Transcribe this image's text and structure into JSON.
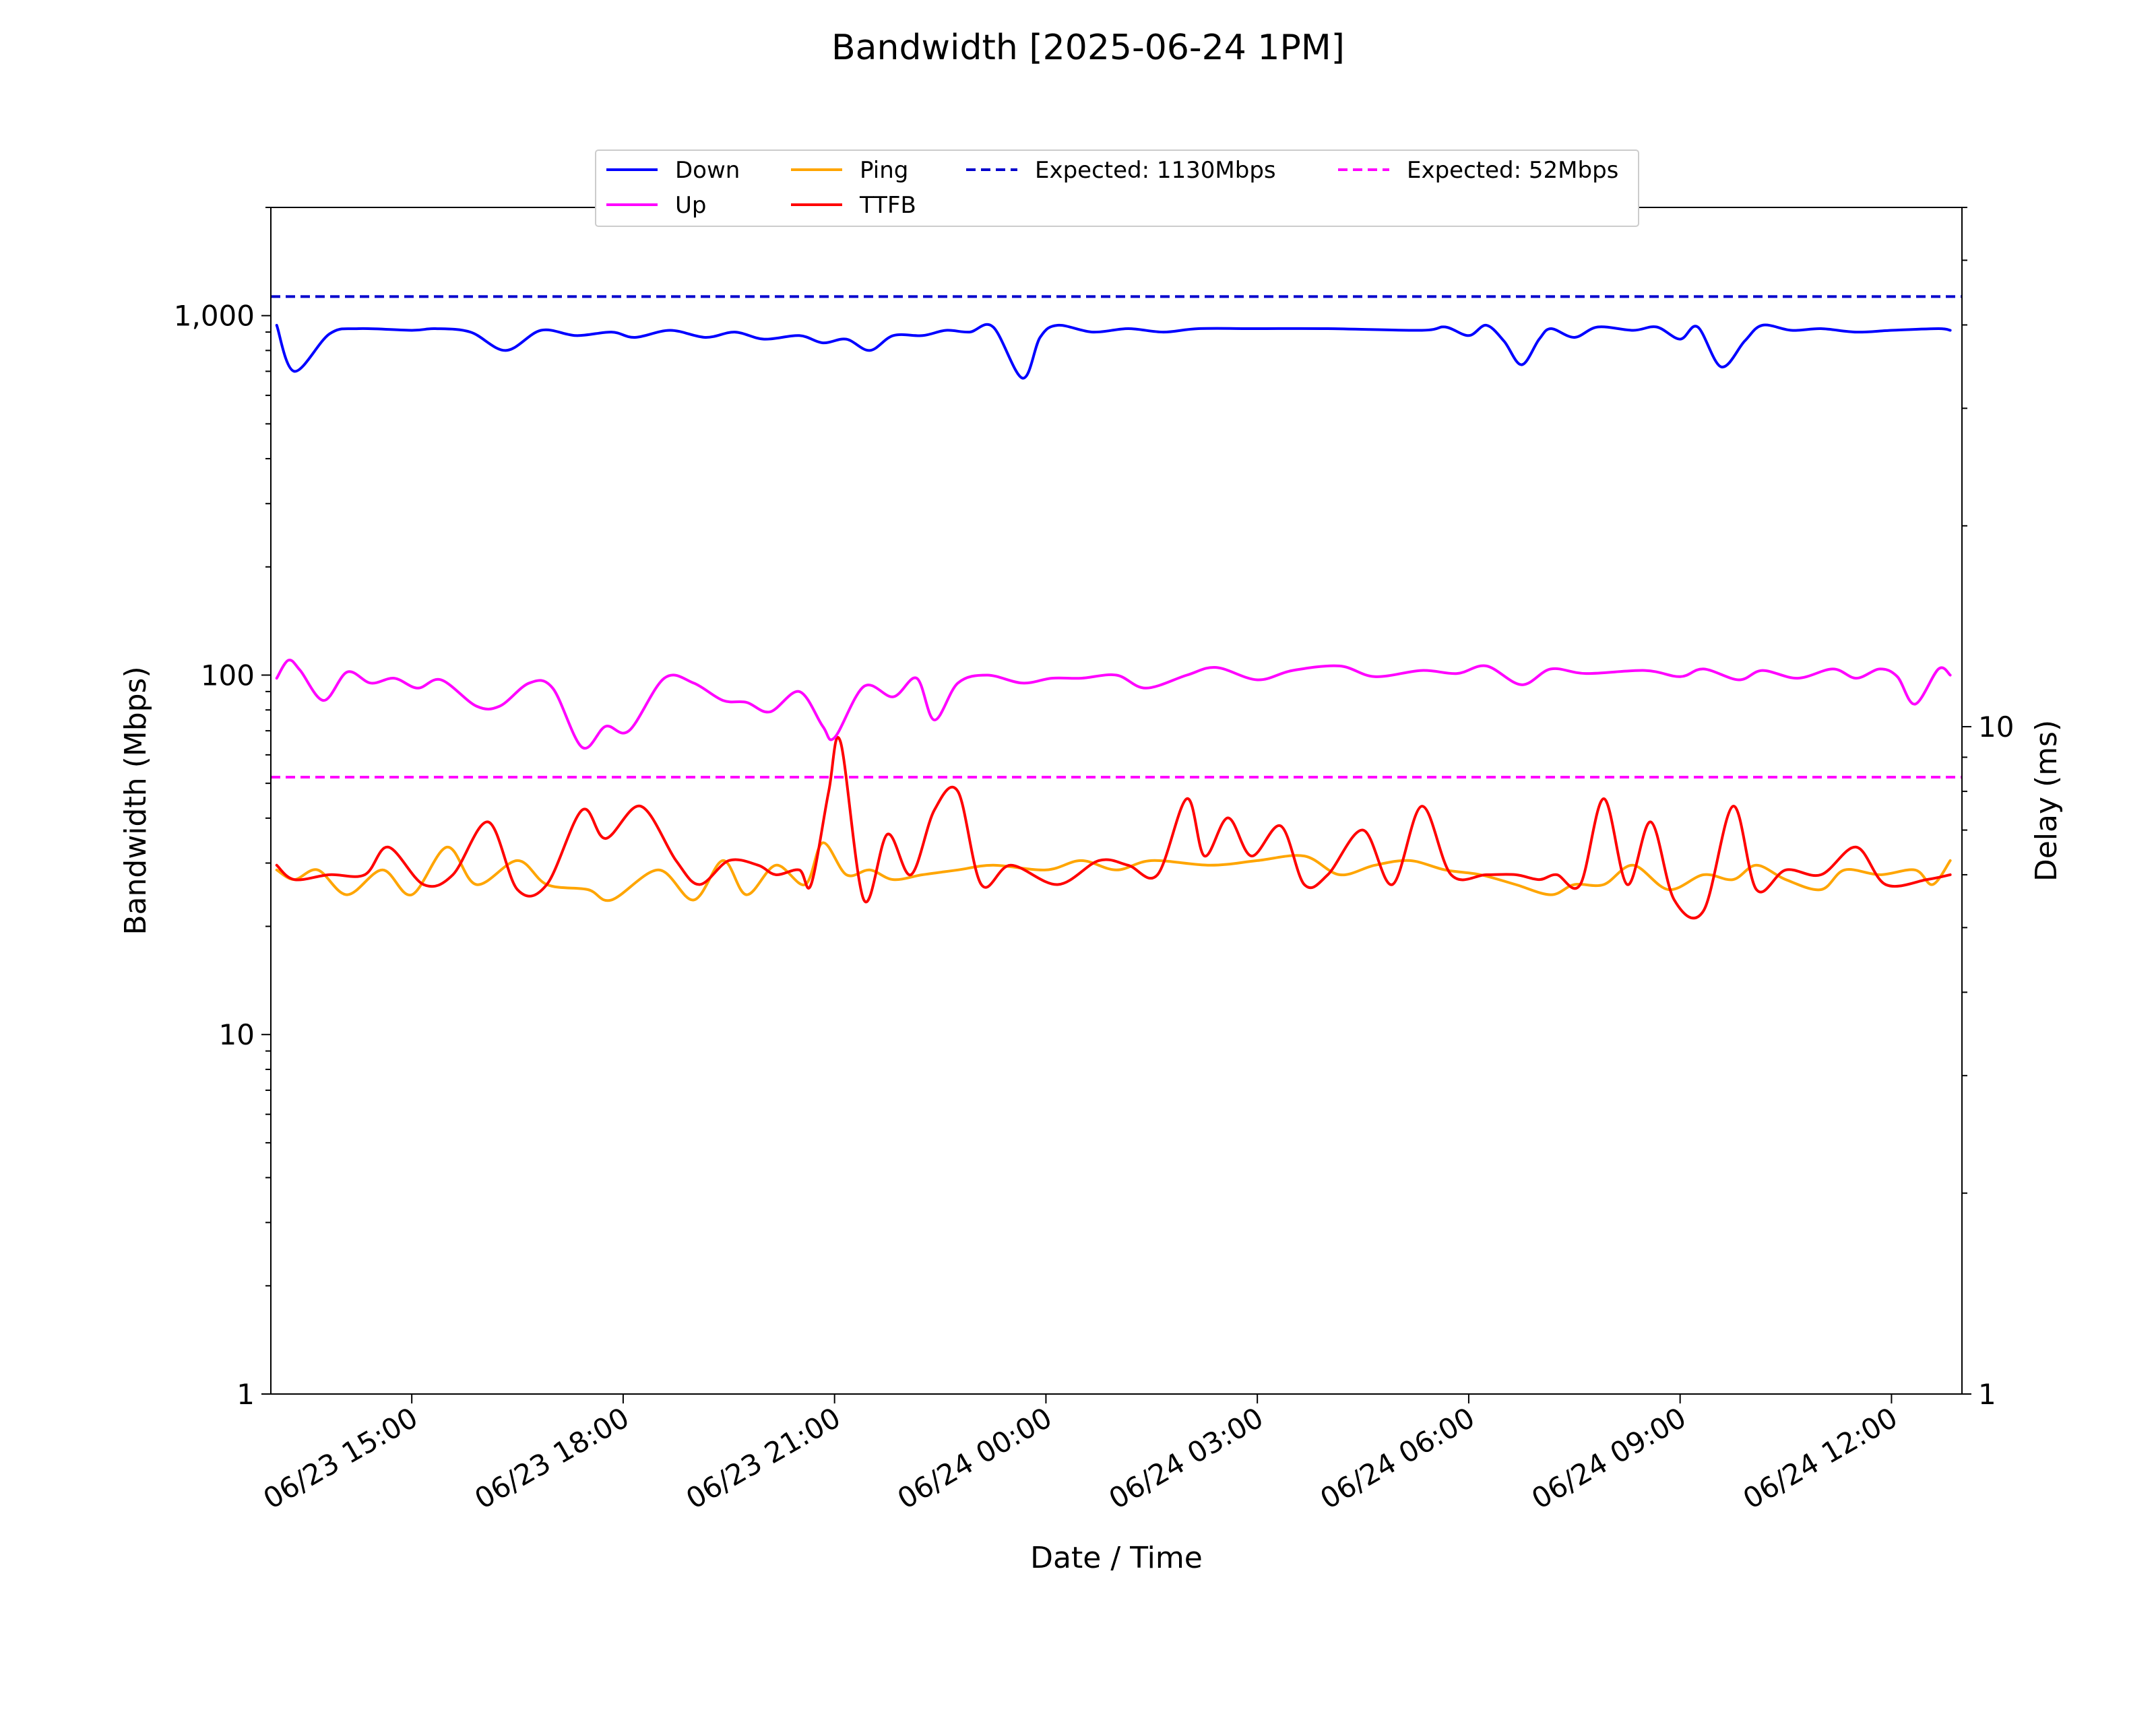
{
  "chart_data": {
    "type": "line",
    "title": "Bandwidth [2025-06-24 1PM]",
    "xlabel": "Date / Time",
    "ylabel_left": "Bandwidth (Mbps)",
    "ylabel_right": "Delay (ms)",
    "y_scale": "log",
    "ylim_left": [
      1,
      2000
    ],
    "ylim_right": [
      1,
      60
    ],
    "y_ticks_left": [
      {
        "value": 1,
        "label": "1"
      },
      {
        "value": 10,
        "label": "10"
      },
      {
        "value": 100,
        "label": "100"
      },
      {
        "value": 1000,
        "label": "1,000"
      }
    ],
    "y_ticks_right": [
      {
        "value": 1,
        "label": "1"
      },
      {
        "value": 10,
        "label": "10"
      }
    ],
    "x_ticks": [
      "06/23 15:00",
      "06/23 18:00",
      "06/23 21:00",
      "06/24 00:00",
      "06/24 03:00",
      "06/24 06:00",
      "06/24 09:00",
      "06/24 12:00"
    ],
    "legend_position": "top-center",
    "legend": [
      {
        "label": "Down",
        "color": "#0000ff",
        "dash": false
      },
      {
        "label": "Up",
        "color": "#ff00ff",
        "dash": false
      },
      {
        "label": "Ping",
        "color": "#ffa500",
        "dash": false
      },
      {
        "label": "TTFB",
        "color": "#ff0000",
        "dash": false
      },
      {
        "label": "Expected: 1130Mbps",
        "color": "#0000cc",
        "dash": true
      },
      {
        "label": "Expected: 52Mbps",
        "color": "#ff00ff",
        "dash": true
      }
    ],
    "reference_lines": [
      {
        "label": "Expected: 1130Mbps",
        "value": 1130,
        "axis": "left",
        "color": "#0000cc"
      },
      {
        "label": "Expected: 52Mbps",
        "value": 52,
        "axis": "left",
        "color": "#ff00ff"
      }
    ],
    "series": [
      {
        "name": "Down",
        "axis": "left",
        "color": "#0000ff",
        "points": [
          [
            "06/23 13:05",
            940
          ],
          [
            "06/23 13:20",
            700
          ],
          [
            "06/23 13:50",
            890
          ],
          [
            "06/23 14:15",
            920
          ],
          [
            "06/23 15:00",
            910
          ],
          [
            "06/23 15:20",
            920
          ],
          [
            "06/23 15:50",
            900
          ],
          [
            "06/23 16:20",
            800
          ],
          [
            "06/23 16:50",
            910
          ],
          [
            "06/23 17:20",
            880
          ],
          [
            "06/23 17:50",
            900
          ],
          [
            "06/23 18:10",
            870
          ],
          [
            "06/23 18:40",
            910
          ],
          [
            "06/23 19:10",
            870
          ],
          [
            "06/23 19:35",
            900
          ],
          [
            "06/23 20:00",
            860
          ],
          [
            "06/23 20:30",
            880
          ],
          [
            "06/23 20:50",
            840
          ],
          [
            "06/23 21:10",
            860
          ],
          [
            "06/23 21:30",
            800
          ],
          [
            "06/23 21:50",
            880
          ],
          [
            "06/23 22:15",
            880
          ],
          [
            "06/23 22:35",
            910
          ],
          [
            "06/23 22:55",
            900
          ],
          [
            "06/23 23:15",
            930
          ],
          [
            "06/23 23:40",
            670
          ],
          [
            "06/23 23:55",
            870
          ],
          [
            "06/24 00:10",
            940
          ],
          [
            "06/24 00:40",
            900
          ],
          [
            "06/24 01:10",
            920
          ],
          [
            "06/24 01:40",
            900
          ],
          [
            "06/24 02:10",
            920
          ],
          [
            "06/24 03:00",
            920
          ],
          [
            "06/24 04:00",
            920
          ],
          [
            "06/24 05:20",
            910
          ],
          [
            "06/24 05:40",
            930
          ],
          [
            "06/24 06:00",
            880
          ],
          [
            "06/24 06:15",
            940
          ],
          [
            "06/24 06:30",
            850
          ],
          [
            "06/24 06:45",
            730
          ],
          [
            "06/24 07:00",
            860
          ],
          [
            "06/24 07:10",
            920
          ],
          [
            "06/24 07:30",
            870
          ],
          [
            "06/24 07:50",
            930
          ],
          [
            "06/24 08:20",
            910
          ],
          [
            "06/24 08:40",
            930
          ],
          [
            "06/24 09:00",
            860
          ],
          [
            "06/24 09:15",
            930
          ],
          [
            "06/24 09:35",
            720
          ],
          [
            "06/24 09:55",
            850
          ],
          [
            "06/24 10:10",
            940
          ],
          [
            "06/24 10:35",
            910
          ],
          [
            "06/24 11:00",
            920
          ],
          [
            "06/24 11:30",
            900
          ],
          [
            "06/24 12:00",
            910
          ],
          [
            "06/24 12:40",
            920
          ],
          [
            "06/24 12:50",
            910
          ]
        ]
      },
      {
        "name": "Up",
        "axis": "left",
        "color": "#ff00ff",
        "points": [
          [
            "06/23 13:05",
            98
          ],
          [
            "06/23 13:15",
            110
          ],
          [
            "06/23 13:25",
            103
          ],
          [
            "06/23 13:45",
            85
          ],
          [
            "06/23 14:05",
            102
          ],
          [
            "06/23 14:25",
            95
          ],
          [
            "06/23 14:45",
            98
          ],
          [
            "06/23 15:05",
            92
          ],
          [
            "06/23 15:25",
            97
          ],
          [
            "06/23 15:55",
            82
          ],
          [
            "06/23 16:15",
            82
          ],
          [
            "06/23 16:40",
            95
          ],
          [
            "06/23 17:00",
            92
          ],
          [
            "06/23 17:25",
            63
          ],
          [
            "06/23 17:45",
            72
          ],
          [
            "06/23 18:05",
            70
          ],
          [
            "06/23 18:35",
            98
          ],
          [
            "06/23 19:00",
            95
          ],
          [
            "06/23 19:25",
            85
          ],
          [
            "06/23 19:45",
            84
          ],
          [
            "06/23 20:05",
            79
          ],
          [
            "06/23 20:30",
            90
          ],
          [
            "06/23 20:50",
            72
          ],
          [
            "06/23 21:00",
            67
          ],
          [
            "06/23 21:25",
            93
          ],
          [
            "06/23 21:50",
            87
          ],
          [
            "06/23 22:10",
            98
          ],
          [
            "06/23 22:25",
            75
          ],
          [
            "06/23 22:45",
            95
          ],
          [
            "06/23 23:10",
            100
          ],
          [
            "06/23 23:40",
            95
          ],
          [
            "06/24 00:05",
            98
          ],
          [
            "06/24 00:30",
            98
          ],
          [
            "06/24 01:00",
            100
          ],
          [
            "06/24 01:25",
            92
          ],
          [
            "06/24 02:00",
            100
          ],
          [
            "06/24 02:25",
            105
          ],
          [
            "06/24 03:00",
            97
          ],
          [
            "06/24 03:30",
            103
          ],
          [
            "06/24 04:10",
            106
          ],
          [
            "06/24 04:40",
            99
          ],
          [
            "06/24 05:20",
            103
          ],
          [
            "06/24 05:50",
            101
          ],
          [
            "06/24 06:15",
            106
          ],
          [
            "06/24 06:45",
            94
          ],
          [
            "06/24 07:10",
            104
          ],
          [
            "06/24 07:40",
            101
          ],
          [
            "06/24 08:30",
            103
          ],
          [
            "06/24 09:00",
            99
          ],
          [
            "06/24 09:20",
            104
          ],
          [
            "06/24 09:50",
            97
          ],
          [
            "06/24 10:10",
            103
          ],
          [
            "06/24 10:40",
            98
          ],
          [
            "06/24 11:10",
            104
          ],
          [
            "06/24 11:30",
            98
          ],
          [
            "06/24 11:50",
            104
          ],
          [
            "06/24 12:05",
            99
          ],
          [
            "06/24 12:20",
            83
          ],
          [
            "06/24 12:40",
            104
          ],
          [
            "06/24 12:50",
            100
          ]
        ]
      },
      {
        "name": "Ping",
        "axis": "right",
        "color": "#ffa500",
        "points": [
          [
            "06/23 13:05",
            6.1
          ],
          [
            "06/23 13:20",
            5.9
          ],
          [
            "06/23 13:40",
            6.1
          ],
          [
            "06/23 14:05",
            5.6
          ],
          [
            "06/23 14:35",
            6.1
          ],
          [
            "06/23 15:00",
            5.6
          ],
          [
            "06/23 15:30",
            6.6
          ],
          [
            "06/23 15:55",
            5.8
          ],
          [
            "06/23 16:30",
            6.3
          ],
          [
            "06/23 16:55",
            5.8
          ],
          [
            "06/23 17:30",
            5.7
          ],
          [
            "06/23 17:50",
            5.5
          ],
          [
            "06/23 18:30",
            6.1
          ],
          [
            "06/23 19:00",
            5.5
          ],
          [
            "06/23 19:25",
            6.3
          ],
          [
            "06/23 19:45",
            5.6
          ],
          [
            "06/23 20:10",
            6.2
          ],
          [
            "06/23 20:35",
            5.8
          ],
          [
            "06/23 20:50",
            6.7
          ],
          [
            "06/23 21:10",
            6.0
          ],
          [
            "06/23 21:30",
            6.1
          ],
          [
            "06/23 21:50",
            5.9
          ],
          [
            "06/23 22:15",
            6.0
          ],
          [
            "06/23 22:45",
            6.1
          ],
          [
            "06/23 23:15",
            6.2
          ],
          [
            "06/24 00:00",
            6.1
          ],
          [
            "06/24 00:30",
            6.3
          ],
          [
            "06/24 01:00",
            6.1
          ],
          [
            "06/24 01:30",
            6.3
          ],
          [
            "06/24 02:20",
            6.2
          ],
          [
            "06/24 03:00",
            6.3
          ],
          [
            "06/24 03:40",
            6.4
          ],
          [
            "06/24 04:10",
            6.0
          ],
          [
            "06/24 04:40",
            6.2
          ],
          [
            "06/24 05:10",
            6.3
          ],
          [
            "06/24 05:40",
            6.1
          ],
          [
            "06/24 06:10",
            6.0
          ],
          [
            "06/24 06:40",
            5.8
          ],
          [
            "06/24 07:10",
            5.6
          ],
          [
            "06/24 07:30",
            5.8
          ],
          [
            "06/24 07:55",
            5.8
          ],
          [
            "06/24 08:20",
            6.2
          ],
          [
            "06/24 08:50",
            5.7
          ],
          [
            "06/24 09:20",
            6.0
          ],
          [
            "06/24 09:45",
            5.9
          ],
          [
            "06/24 10:05",
            6.2
          ],
          [
            "06/24 10:30",
            5.9
          ],
          [
            "06/24 11:00",
            5.7
          ],
          [
            "06/24 11:20",
            6.1
          ],
          [
            "06/24 11:50",
            6.0
          ],
          [
            "06/24 12:20",
            6.1
          ],
          [
            "06/24 12:35",
            5.8
          ],
          [
            "06/24 12:50",
            6.3
          ]
        ]
      },
      {
        "name": "TTFB",
        "axis": "right",
        "color": "#ff0000",
        "points": [
          [
            "06/23 13:05",
            6.2
          ],
          [
            "06/23 13:20",
            5.9
          ],
          [
            "06/23 13:50",
            6.0
          ],
          [
            "06/23 14:20",
            6.0
          ],
          [
            "06/23 14:40",
            6.6
          ],
          [
            "06/23 15:10",
            5.8
          ],
          [
            "06/23 15:35",
            6.0
          ],
          [
            "06/23 16:05",
            7.2
          ],
          [
            "06/23 16:30",
            5.7
          ],
          [
            "06/23 16:55",
            5.8
          ],
          [
            "06/23 17:25",
            7.5
          ],
          [
            "06/23 17:45",
            6.8
          ],
          [
            "06/23 18:15",
            7.6
          ],
          [
            "06/23 18:45",
            6.3
          ],
          [
            "06/23 19:05",
            5.8
          ],
          [
            "06/23 19:30",
            6.3
          ],
          [
            "06/23 19:55",
            6.2
          ],
          [
            "06/23 20:10",
            6.0
          ],
          [
            "06/23 20:30",
            6.1
          ],
          [
            "06/23 20:40",
            5.8
          ],
          [
            "06/23 20:55",
            8.0
          ],
          [
            "06/23 21:05",
            9.5
          ],
          [
            "06/23 21:25",
            5.5
          ],
          [
            "06/23 21:45",
            6.9
          ],
          [
            "06/23 22:05",
            6.0
          ],
          [
            "06/23 22:25",
            7.5
          ],
          [
            "06/23 22:45",
            8.0
          ],
          [
            "06/23 23:05",
            5.8
          ],
          [
            "06/23 23:30",
            6.2
          ],
          [
            "06/24 00:10",
            5.8
          ],
          [
            "06/24 00:45",
            6.3
          ],
          [
            "06/24 01:10",
            6.2
          ],
          [
            "06/24 01:35",
            6.0
          ],
          [
            "06/24 02:00",
            7.8
          ],
          [
            "06/24 02:15",
            6.4
          ],
          [
            "06/24 02:35",
            7.3
          ],
          [
            "06/24 02:55",
            6.4
          ],
          [
            "06/24 03:20",
            7.1
          ],
          [
            "06/24 03:40",
            5.8
          ],
          [
            "06/24 04:00",
            6.0
          ],
          [
            "06/24 04:30",
            7.0
          ],
          [
            "06/24 04:55",
            5.8
          ],
          [
            "06/24 05:20",
            7.6
          ],
          [
            "06/24 05:45",
            6.0
          ],
          [
            "06/24 06:15",
            6.0
          ],
          [
            "06/24 06:40",
            6.0
          ],
          [
            "06/24 07:00",
            5.9
          ],
          [
            "06/24 07:15",
            6.0
          ],
          [
            "06/24 07:35",
            5.8
          ],
          [
            "06/24 07:55",
            7.8
          ],
          [
            "06/24 08:15",
            5.8
          ],
          [
            "06/24 08:35",
            7.2
          ],
          [
            "06/24 08:55",
            5.5
          ],
          [
            "06/24 09:20",
            5.3
          ],
          [
            "06/24 09:45",
            7.6
          ],
          [
            "06/24 10:05",
            5.7
          ],
          [
            "06/24 10:30",
            6.1
          ],
          [
            "06/24 11:00",
            6.0
          ],
          [
            "06/24 11:30",
            6.6
          ],
          [
            "06/24 11:55",
            5.8
          ],
          [
            "06/24 12:30",
            5.9
          ],
          [
            "06/24 12:50",
            6.0
          ]
        ]
      }
    ]
  }
}
